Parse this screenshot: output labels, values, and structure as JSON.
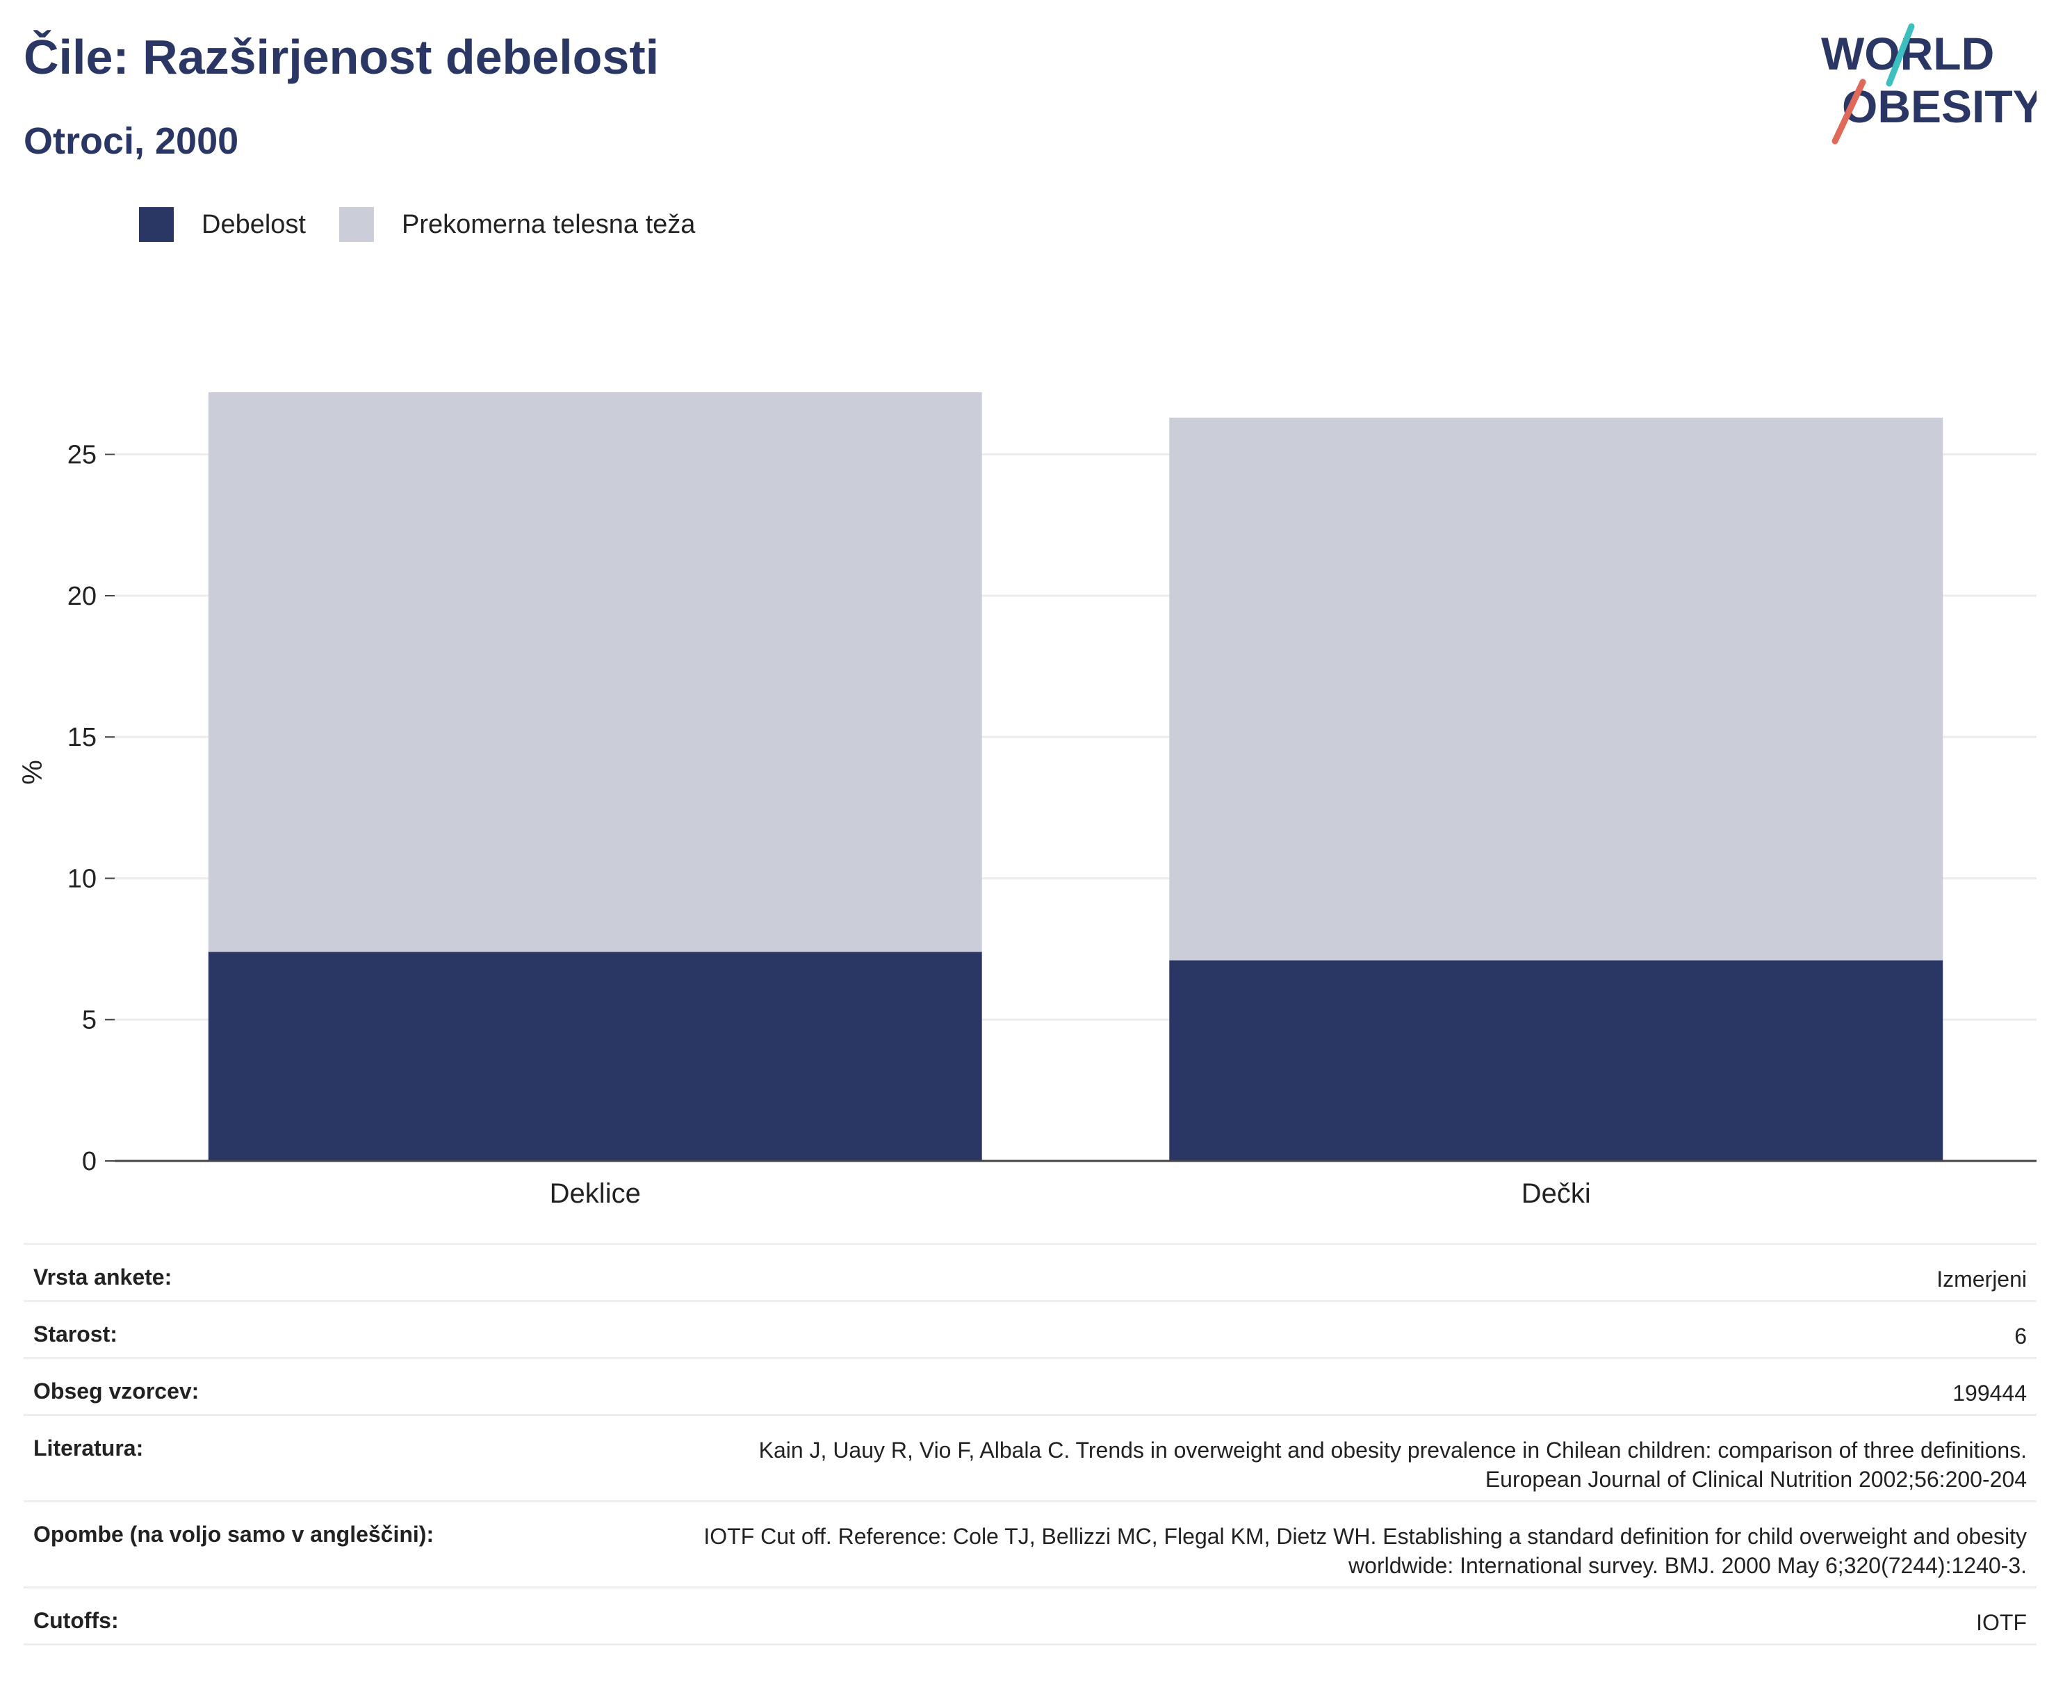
{
  "header": {
    "title": "Čile: Razširjenost debelosti",
    "subtitle": "Otroci, 2000"
  },
  "logo": {
    "line1": "WORLD",
    "line2": "OBESITY"
  },
  "colors": {
    "obesity": "#2a3664",
    "overweight": "#cbcdd9",
    "text": "#2a3664",
    "logo_teal": "#3dbfbf",
    "logo_red": "#e06a5a"
  },
  "chart_data": {
    "type": "bar",
    "stacked": true,
    "categories": [
      "Deklice",
      "Dečki"
    ],
    "series": [
      {
        "name": "Debelost",
        "values": [
          7.4,
          7.1
        ]
      },
      {
        "name": "Prekomerna telesna teža",
        "values": [
          19.8,
          19.2
        ]
      }
    ],
    "ylabel": "%",
    "ylim": [
      0,
      27.5
    ],
    "yticks": [
      0,
      5,
      10,
      15,
      20,
      25
    ],
    "grid": true,
    "legend": "top-left"
  },
  "info": [
    {
      "label": "Vrsta ankete:",
      "value": [
        "Izmerjeni"
      ]
    },
    {
      "label": "Starost:",
      "value": [
        "6"
      ]
    },
    {
      "label": "Obseg vzorcev:",
      "value": [
        "199444"
      ]
    },
    {
      "label": "Literatura:",
      "value": [
        "Kain J, Uauy R, Vio F, Albala C. Trends in overweight and obesity prevalence in Chilean children: comparison of three definitions.",
        "European Journal of Clinical Nutrition 2002;56:200-204"
      ]
    },
    {
      "label": "Opombe (na voljo samo v angleščini):",
      "value": [
        "IOTF Cut off. Reference: Cole TJ, Bellizzi MC, Flegal KM, Dietz WH. Establishing a standard definition for child overweight and obesity",
        "worldwide: International survey. BMJ. 2000 May 6;320(7244):1240-3."
      ]
    },
    {
      "label": "Cutoffs:",
      "value": [
        "IOTF"
      ]
    }
  ]
}
